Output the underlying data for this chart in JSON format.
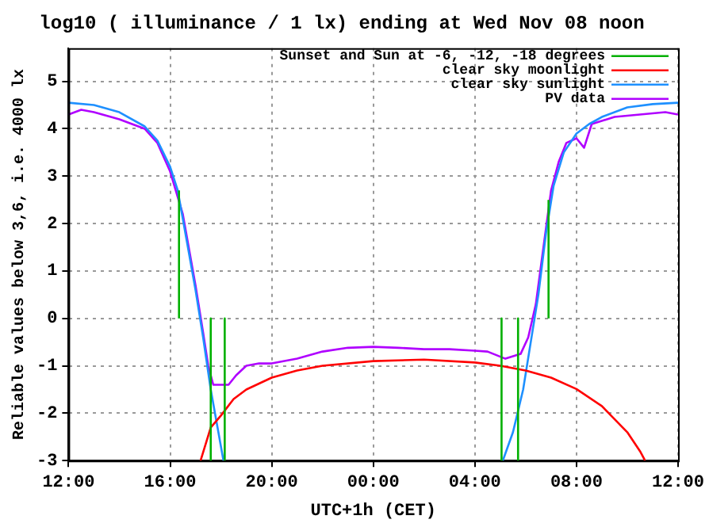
{
  "chart_data": {
    "type": "line",
    "title": "log10 ( illuminance / 1 lx) ending at Wed Nov 08 noon",
    "xlabel": "UTC+1h (CET)",
    "ylabel": "Reliable values below 3,6, i.e. 4000 lx",
    "xlim": [
      "--11-07T12:00",
      "--11-08T12:00"
    ],
    "xticks": [
      {
        "value": "--11-07T12:00",
        "label": "12:00"
      },
      {
        "value": "--11-07T16:00",
        "label": "16:00"
      },
      {
        "value": "--11-07T20:00",
        "label": "20:00"
      },
      {
        "value": "--11-08T00:00",
        "label": "00:00"
      },
      {
        "value": "--11-08T04:00",
        "label": "04:00"
      },
      {
        "value": "--11-08T08:00",
        "label": "08:00"
      },
      {
        "value": "--11-08T12:00",
        "label": "12:00"
      }
    ],
    "ylim": [
      -3,
      5.7
    ],
    "yticks": [
      -3,
      -2,
      -1,
      0,
      1,
      2,
      3,
      4,
      5
    ],
    "grid": true,
    "legend": "top right",
    "marker": "none",
    "line_style": "solid",
    "series": [
      {
        "name": "Sunset and Sun at -6, -12, -18 degrees",
        "color": "#00b000",
        "x": [
          "--11-07T16:21",
          "--11-07T16:21",
          null,
          "--11-07T17:36",
          "--11-07T17:36",
          null,
          "--11-07T18:09",
          "--11-07T18:09",
          null,
          "--11-08T05:03",
          "--11-08T05:03",
          null,
          "--11-08T05:42",
          "--11-08T05:42",
          null,
          "--11-08T06:54",
          "--11-08T06:54"
        ],
        "values": [
          0,
          2.7,
          null,
          0,
          -3,
          null,
          0,
          -3,
          null,
          0,
          -3,
          null,
          0,
          -3,
          null,
          0,
          2.5
        ]
      },
      {
        "name": "clear sky moonlight",
        "color": "#ff0000",
        "x": [
          "--11-07T17:12",
          "--11-07T17:36",
          "--11-07T18:00",
          "--11-07T18:30",
          "--11-07T19:00",
          "--11-07T20:00",
          "--11-07T21:00",
          "--11-07T22:00",
          "--11-08T00:00",
          "--11-08T02:00",
          "--11-08T04:00",
          "--11-08T05:00",
          "--11-08T06:00",
          "--11-08T07:00",
          "--11-08T08:00",
          "--11-08T09:00",
          "--11-08T10:00",
          "--11-08T10:30",
          "--11-08T10:42"
        ],
        "values": [
          -3,
          -2.3,
          -2.05,
          -1.7,
          -1.5,
          -1.25,
          -1.1,
          -1.0,
          -0.9,
          -0.87,
          -0.93,
          -1.0,
          -1.1,
          -1.25,
          -1.49,
          -1.85,
          -2.4,
          -2.8,
          -3
        ]
      },
      {
        "name": "clear sky sunlight",
        "color": "#1e90ff",
        "x": [
          "--11-07T12:00",
          "--11-07T13:00",
          "--11-07T14:00",
          "--11-07T15:00",
          "--11-07T15:30",
          "--11-07T16:00",
          "--11-07T16:18",
          "--11-07T16:36",
          "--11-07T17:00",
          "--11-07T17:18",
          "--11-07T17:36",
          "--11-07T17:54",
          "--11-07T18:06",
          null,
          "--11-08T05:06",
          "--11-08T05:30",
          "--11-08T05:54",
          "--11-08T06:12",
          "--11-08T06:30",
          "--11-08T06:48",
          "--11-08T07:06",
          "--11-08T07:30",
          "--11-08T08:00",
          "--11-08T08:30",
          "--11-08T09:00",
          "--11-08T10:00",
          "--11-08T11:00",
          "--11-08T12:00"
        ],
        "values": [
          4.55,
          4.5,
          4.35,
          4.05,
          3.75,
          3.2,
          2.7,
          1.8,
          0.6,
          -0.4,
          -1.5,
          -2.4,
          -3,
          null,
          -3,
          -2.4,
          -1.5,
          -0.5,
          0.5,
          1.8,
          2.8,
          3.5,
          3.9,
          4.1,
          4.25,
          4.45,
          4.52,
          4.55
        ]
      },
      {
        "name": "PV data",
        "color": "#b000ff",
        "x": [
          "--11-07T12:00",
          "--11-07T12:30",
          "--11-07T13:00",
          "--11-07T14:00",
          "--11-07T15:00",
          "--11-07T15:30",
          "--11-07T16:00",
          "--11-07T16:30",
          "--11-07T17:00",
          "--11-07T17:18",
          "--11-07T17:30",
          "--11-07T17:42",
          "--11-07T18:18",
          "--11-07T18:36",
          "--11-07T19:00",
          "--11-07T19:30",
          "--11-07T20:00",
          "--11-07T21:00",
          "--11-07T22:00",
          "--11-07T23:00",
          "--11-08T00:00",
          "--11-08T01:00",
          "--11-08T02:00",
          "--11-08T03:00",
          "--11-08T04:00",
          "--11-08T04:30",
          "--11-08T05:12",
          "--11-08T05:48",
          "--11-08T06:06",
          "--11-08T06:24",
          "--11-08T06:42",
          "--11-08T07:00",
          "--11-08T07:18",
          "--11-08T07:36",
          "--11-08T08:00",
          "--11-08T08:18",
          "--11-08T08:36",
          "--11-08T09:30",
          "--11-08T10:30",
          "--11-08T11:30",
          "--11-08T12:00"
        ],
        "values": [
          4.3,
          4.4,
          4.35,
          4.2,
          4.0,
          3.7,
          3.1,
          2.2,
          0.7,
          -0.3,
          -1.0,
          -1.4,
          -1.4,
          -1.2,
          -1.0,
          -0.95,
          -0.95,
          -0.85,
          -0.7,
          -0.62,
          -0.6,
          -0.62,
          -0.65,
          -0.65,
          -0.68,
          -0.7,
          -0.85,
          -0.75,
          -0.4,
          0.3,
          1.5,
          2.7,
          3.3,
          3.7,
          3.8,
          3.6,
          4.1,
          4.25,
          4.3,
          4.35,
          4.3
        ]
      }
    ]
  }
}
